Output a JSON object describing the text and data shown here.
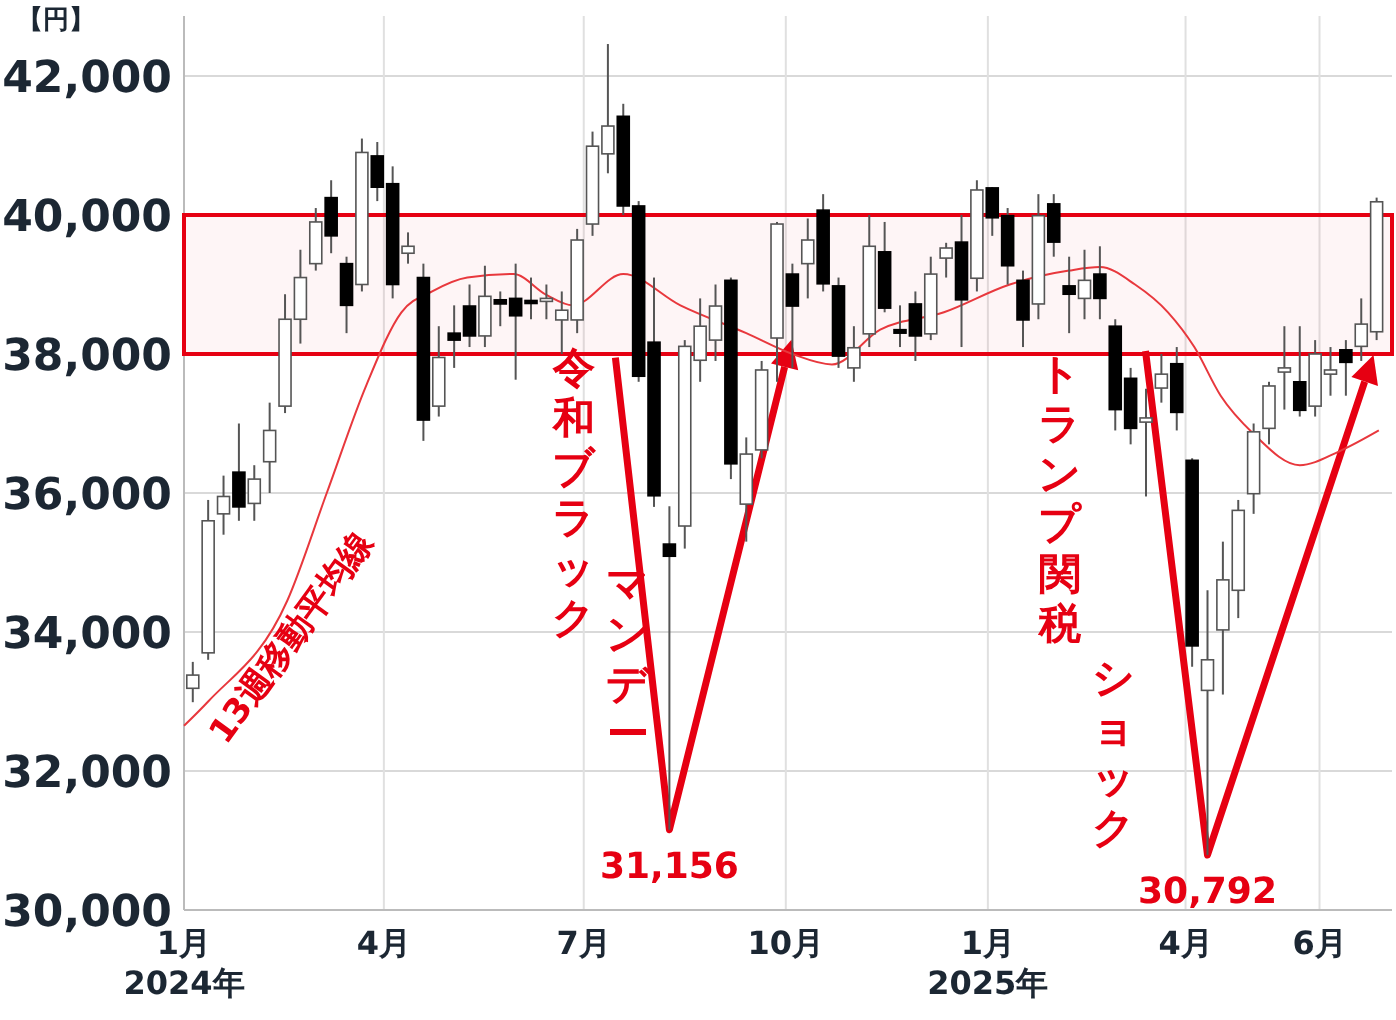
{
  "chart_data": {
    "type": "candlestick",
    "ylabel": "【円】",
    "x": [
      "2024-01-05",
      "2024-01-12",
      "2024-01-19",
      "2024-01-26",
      "2024-02-02",
      "2024-02-09",
      "2024-02-16",
      "2024-02-23",
      "2024-03-01",
      "2024-03-08",
      "2024-03-15",
      "2024-03-22",
      "2024-03-29",
      "2024-04-05",
      "2024-04-12",
      "2024-04-19",
      "2024-04-26",
      "2024-05-03",
      "2024-05-10",
      "2024-05-17",
      "2024-05-24",
      "2024-05-31",
      "2024-06-07",
      "2024-06-14",
      "2024-06-21",
      "2024-06-28",
      "2024-07-05",
      "2024-07-12",
      "2024-07-19",
      "2024-07-26",
      "2024-08-02",
      "2024-08-09",
      "2024-08-16",
      "2024-08-23",
      "2024-08-30",
      "2024-09-06",
      "2024-09-13",
      "2024-09-20",
      "2024-09-27",
      "2024-10-04",
      "2024-10-11",
      "2024-10-18",
      "2024-10-25",
      "2024-11-01",
      "2024-11-08",
      "2024-11-15",
      "2024-11-22",
      "2024-11-29",
      "2024-12-06",
      "2024-12-13",
      "2024-12-20",
      "2024-12-27",
      "2025-01-03",
      "2025-01-10",
      "2025-01-17",
      "2025-01-24",
      "2025-01-31",
      "2025-02-07",
      "2025-02-14",
      "2025-02-21",
      "2025-02-28",
      "2025-03-07",
      "2025-03-14",
      "2025-03-21",
      "2025-03-28",
      "2025-04-04",
      "2025-04-11",
      "2025-04-18",
      "2025-04-25",
      "2025-05-02",
      "2025-05-09",
      "2025-05-16",
      "2025-05-23",
      "2025-05-30",
      "2025-06-06",
      "2025-06-13",
      "2025-06-20",
      "2025-06-27"
    ],
    "ohlc": [
      [
        33190,
        33570,
        32990,
        33380
      ],
      [
        33700,
        35900,
        33600,
        35600
      ],
      [
        35700,
        36250,
        35400,
        35950
      ],
      [
        36300,
        37000,
        35600,
        35800
      ],
      [
        35850,
        36400,
        35600,
        36200
      ],
      [
        36450,
        37300,
        36000,
        36900
      ],
      [
        37250,
        38860,
        37150,
        38500
      ],
      [
        38500,
        39500,
        38150,
        39100
      ],
      [
        39300,
        40100,
        39200,
        39900
      ],
      [
        40250,
        40500,
        39450,
        39700
      ],
      [
        39300,
        39400,
        38300,
        38700
      ],
      [
        39000,
        41100,
        38900,
        40900
      ],
      [
        40850,
        41050,
        40200,
        40400
      ],
      [
        40450,
        40700,
        38800,
        39000
      ],
      [
        39450,
        39750,
        39300,
        39550
      ],
      [
        39100,
        39300,
        36750,
        37050
      ],
      [
        37250,
        38400,
        37100,
        37950
      ],
      [
        38300,
        38700,
        37800,
        38200
      ],
      [
        38690,
        39000,
        38100,
        38260
      ],
      [
        38260,
        39270,
        38100,
        38830
      ],
      [
        38780,
        38900,
        38400,
        38720
      ],
      [
        38800,
        39300,
        37630,
        38550
      ],
      [
        38770,
        39100,
        38500,
        38730
      ],
      [
        38760,
        39000,
        38500,
        38800
      ],
      [
        38490,
        38900,
        38000,
        38630
      ],
      [
        38490,
        39800,
        38300,
        39640
      ],
      [
        39870,
        41200,
        39700,
        40990
      ],
      [
        40880,
        42460,
        40600,
        41280
      ],
      [
        41420,
        41600,
        40000,
        40130
      ],
      [
        40130,
        40200,
        37600,
        37680
      ],
      [
        38170,
        39100,
        35800,
        35960
      ],
      [
        35265,
        35810,
        31156,
        35090
      ],
      [
        35525,
        38200,
        35200,
        38110
      ],
      [
        37910,
        38800,
        37600,
        38400
      ],
      [
        38200,
        39000,
        37900,
        38690
      ],
      [
        39060,
        39100,
        36200,
        36420
      ],
      [
        35840,
        36800,
        35300,
        36560
      ],
      [
        36620,
        37900,
        36500,
        37770
      ],
      [
        38230,
        39900,
        37600,
        39870
      ],
      [
        39150,
        39300,
        37800,
        38690
      ],
      [
        39300,
        39950,
        38800,
        39640
      ],
      [
        40070,
        40300,
        38900,
        39010
      ],
      [
        38980,
        39100,
        37800,
        37970
      ],
      [
        37800,
        38400,
        37600,
        38090
      ],
      [
        38290,
        40000,
        38100,
        39550
      ],
      [
        39470,
        39900,
        38600,
        38660
      ],
      [
        38350,
        38700,
        38100,
        38300
      ],
      [
        38720,
        38900,
        37900,
        38260
      ],
      [
        38290,
        39400,
        38200,
        39150
      ],
      [
        39380,
        39600,
        39100,
        39525
      ],
      [
        39610,
        40000,
        38100,
        38780
      ],
      [
        39090,
        40500,
        38900,
        40360
      ],
      [
        40390,
        40400,
        39700,
        39960
      ],
      [
        39990,
        40100,
        39000,
        39270
      ],
      [
        39060,
        39200,
        38100,
        38490
      ],
      [
        38720,
        40300,
        38500,
        39990
      ],
      [
        40160,
        40300,
        39400,
        39610
      ],
      [
        38980,
        39400,
        38300,
        38860
      ],
      [
        38800,
        39500,
        38500,
        39060
      ],
      [
        39150,
        39550,
        38500,
        38800
      ],
      [
        38400,
        38500,
        36900,
        37200
      ],
      [
        37650,
        37800,
        36700,
        36930
      ],
      [
        37020,
        37500,
        35950,
        37080
      ],
      [
        37510,
        38000,
        37300,
        37710
      ],
      [
        37860,
        38100,
        36900,
        37160
      ],
      [
        36470,
        36500,
        33500,
        33800
      ],
      [
        33160,
        34600,
        30792,
        33600
      ],
      [
        34030,
        35300,
        33100,
        34750
      ],
      [
        34600,
        35900,
        34200,
        35750
      ],
      [
        35990,
        37000,
        35700,
        36880
      ],
      [
        36930,
        37600,
        36700,
        37540
      ],
      [
        37740,
        38400,
        37200,
        37800
      ],
      [
        37600,
        38400,
        37100,
        37190
      ],
      [
        37250,
        38200,
        37100,
        38000
      ],
      [
        37710,
        38100,
        37400,
        37770
      ],
      [
        38060,
        38200,
        37400,
        37880
      ],
      [
        38110,
        38800,
        37900,
        38430
      ],
      [
        38320,
        40250,
        38200,
        40190
      ]
    ],
    "series": [
      {
        "type": "line",
        "color": "#e8383d",
        "x": [
          "2024-01-01",
          "2024-01-12",
          "2024-02-17",
          "2024-03-06",
          "2024-03-24",
          "2024-04-09",
          "2024-04-23",
          "2024-05-09",
          "2024-05-30",
          "2024-06-14",
          "2024-06-26",
          "2024-07-19",
          "2024-08-14",
          "2024-09-13",
          "2024-10-04",
          "2024-10-22",
          "2024-11-13",
          "2024-12-12",
          "2025-01-11",
          "2025-02-07",
          "2025-02-21",
          "2025-03-09",
          "2025-03-24",
          "2025-04-05",
          "2025-04-17",
          "2025-05-02",
          "2025-05-23",
          "2025-06-10",
          "2025-06-28"
        ],
        "values": [
          32650,
          33000,
          34450,
          36000,
          37550,
          38600,
          38900,
          39100,
          39150,
          38850,
          38700,
          39150,
          38700,
          38300,
          38000,
          37850,
          38350,
          38600,
          39000,
          39200,
          39250,
          39000,
          38600,
          38100,
          37400,
          36850,
          36400,
          36600,
          36900
        ]
      }
    ],
    "xlim": [
      "2024-01-01",
      "2025-07-04"
    ],
    "xticks": [
      {
        "value": "2024-01-01",
        "label": "1月\n2024年"
      },
      {
        "value": "2024-04-01",
        "label": "4月"
      },
      {
        "value": "2024-07-01",
        "label": "7月"
      },
      {
        "value": "2024-10-01",
        "label": "10月"
      },
      {
        "value": "2025-01-01",
        "label": "1月\n2025年"
      },
      {
        "value": "2025-04-01",
        "label": "4月"
      },
      {
        "value": "2025-06-01",
        "label": "6月"
      }
    ],
    "ylim": [
      30000,
      42000
    ],
    "yticks": [
      {
        "value": 30000,
        "label": "30,000"
      },
      {
        "value": 32000,
        "label": "32,000"
      },
      {
        "value": 34000,
        "label": "34,000"
      },
      {
        "value": 36000,
        "label": "36,000"
      },
      {
        "value": 38000,
        "label": "38,000"
      },
      {
        "value": 40000,
        "label": "40,000"
      },
      {
        "value": 42000,
        "label": "42,000"
      }
    ],
    "grid": true,
    "bands": [
      {
        "axis": "y",
        "from": 38000,
        "to": 40000,
        "color": "#e60012"
      }
    ],
    "annotations": [
      "13週移動平均線",
      "令和ブラックマンデー",
      {
        "text": "31,156",
        "x": "2024-08-09",
        "y": 31156
      },
      "トランプ関税ショック",
      {
        "text": "30,792",
        "x": "2025-04-11",
        "y": 30792
      }
    ]
  }
}
